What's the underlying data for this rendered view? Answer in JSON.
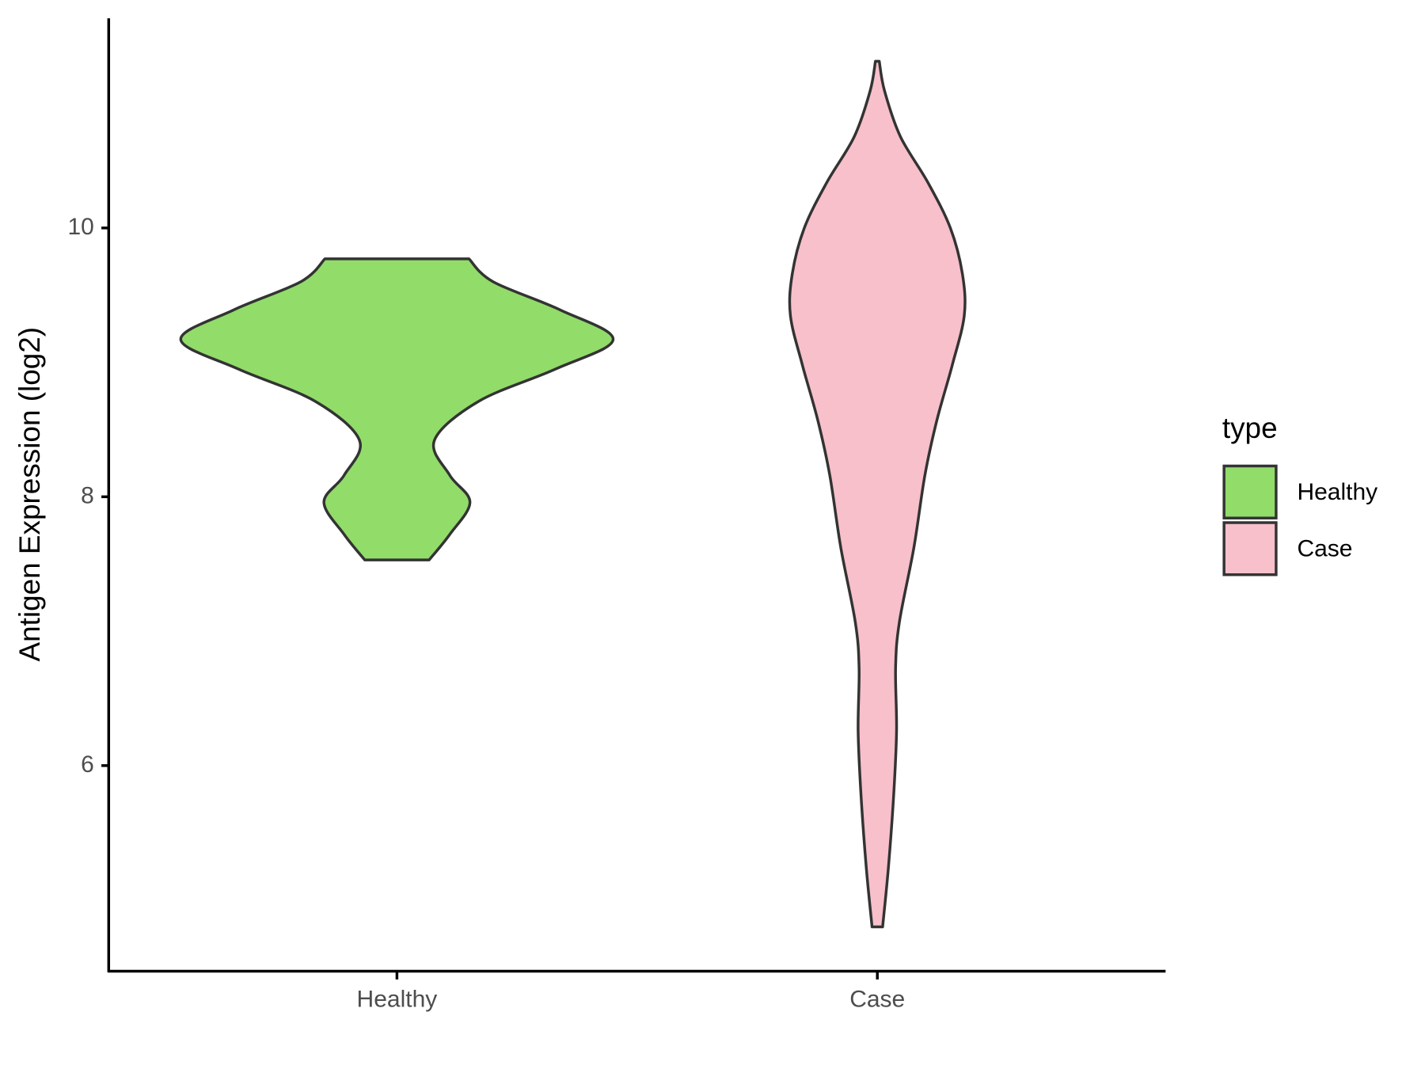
{
  "chart_data": {
    "type": "violin",
    "y_label": "Antigen Expression (log2)",
    "legend_title": "type",
    "categories": [
      "Healthy",
      "Case"
    ],
    "series": [
      {
        "name": "Healthy",
        "color": "#92dc6a",
        "y": [
          9.77,
          9.6,
          9.39,
          9.17,
          8.95,
          8.71,
          8.42,
          8.16,
          7.96,
          7.72,
          7.53
        ],
        "width": [
          0.15,
          0.2,
          0.34,
          0.45,
          0.33,
          0.17,
          0.078,
          0.11,
          0.152,
          0.11,
          0.067
        ]
      },
      {
        "name": "Case",
        "color": "#f7c0cb",
        "y": [
          11.24,
          11.02,
          10.68,
          10.34,
          10.0,
          9.66,
          9.35,
          8.98,
          8.57,
          8.16,
          7.62,
          7.07,
          6.73,
          6.26,
          5.78,
          5.24,
          4.8
        ],
        "width": [
          0.004,
          0.015,
          0.048,
          0.105,
          0.152,
          0.177,
          0.181,
          0.156,
          0.124,
          0.099,
          0.076,
          0.046,
          0.038,
          0.04,
          0.034,
          0.023,
          0.011
        ]
      }
    ],
    "ylim": [
      4.47,
      11.56
    ],
    "yticks": [
      6,
      8,
      10
    ]
  }
}
